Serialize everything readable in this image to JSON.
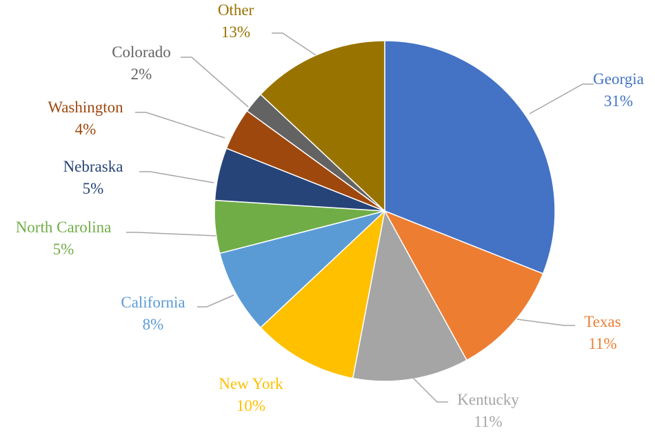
{
  "chart_data": {
    "type": "pie",
    "title": "",
    "slices": [
      {
        "label": "Georgia",
        "value": 31,
        "value_label": "31%",
        "color": "#4472C4"
      },
      {
        "label": "Texas",
        "value": 11,
        "value_label": "11%",
        "color": "#ED7D31"
      },
      {
        "label": "Kentucky",
        "value": 11,
        "value_label": "11%",
        "color": "#A5A5A5"
      },
      {
        "label": "New York",
        "value": 10,
        "value_label": "10%",
        "color": "#FFC000"
      },
      {
        "label": "California",
        "value": 8,
        "value_label": "8%",
        "color": "#5B9BD5"
      },
      {
        "label": "North Carolina",
        "value": 5,
        "value_label": "5%",
        "color": "#70AD47"
      },
      {
        "label": "Nebraska",
        "value": 5,
        "value_label": "5%",
        "color": "#264478"
      },
      {
        "label": "Washington",
        "value": 4,
        "value_label": "4%",
        "color": "#9E480E"
      },
      {
        "label": "Colorado",
        "value": 2,
        "value_label": "2%",
        "color": "#636363"
      },
      {
        "label": "Other",
        "value": 13,
        "value_label": "13%",
        "color": "#997300"
      }
    ],
    "start_angle_deg": 0,
    "direction": "clockwise",
    "leader_line_color": "#A6A6A6",
    "legend": "none"
  }
}
